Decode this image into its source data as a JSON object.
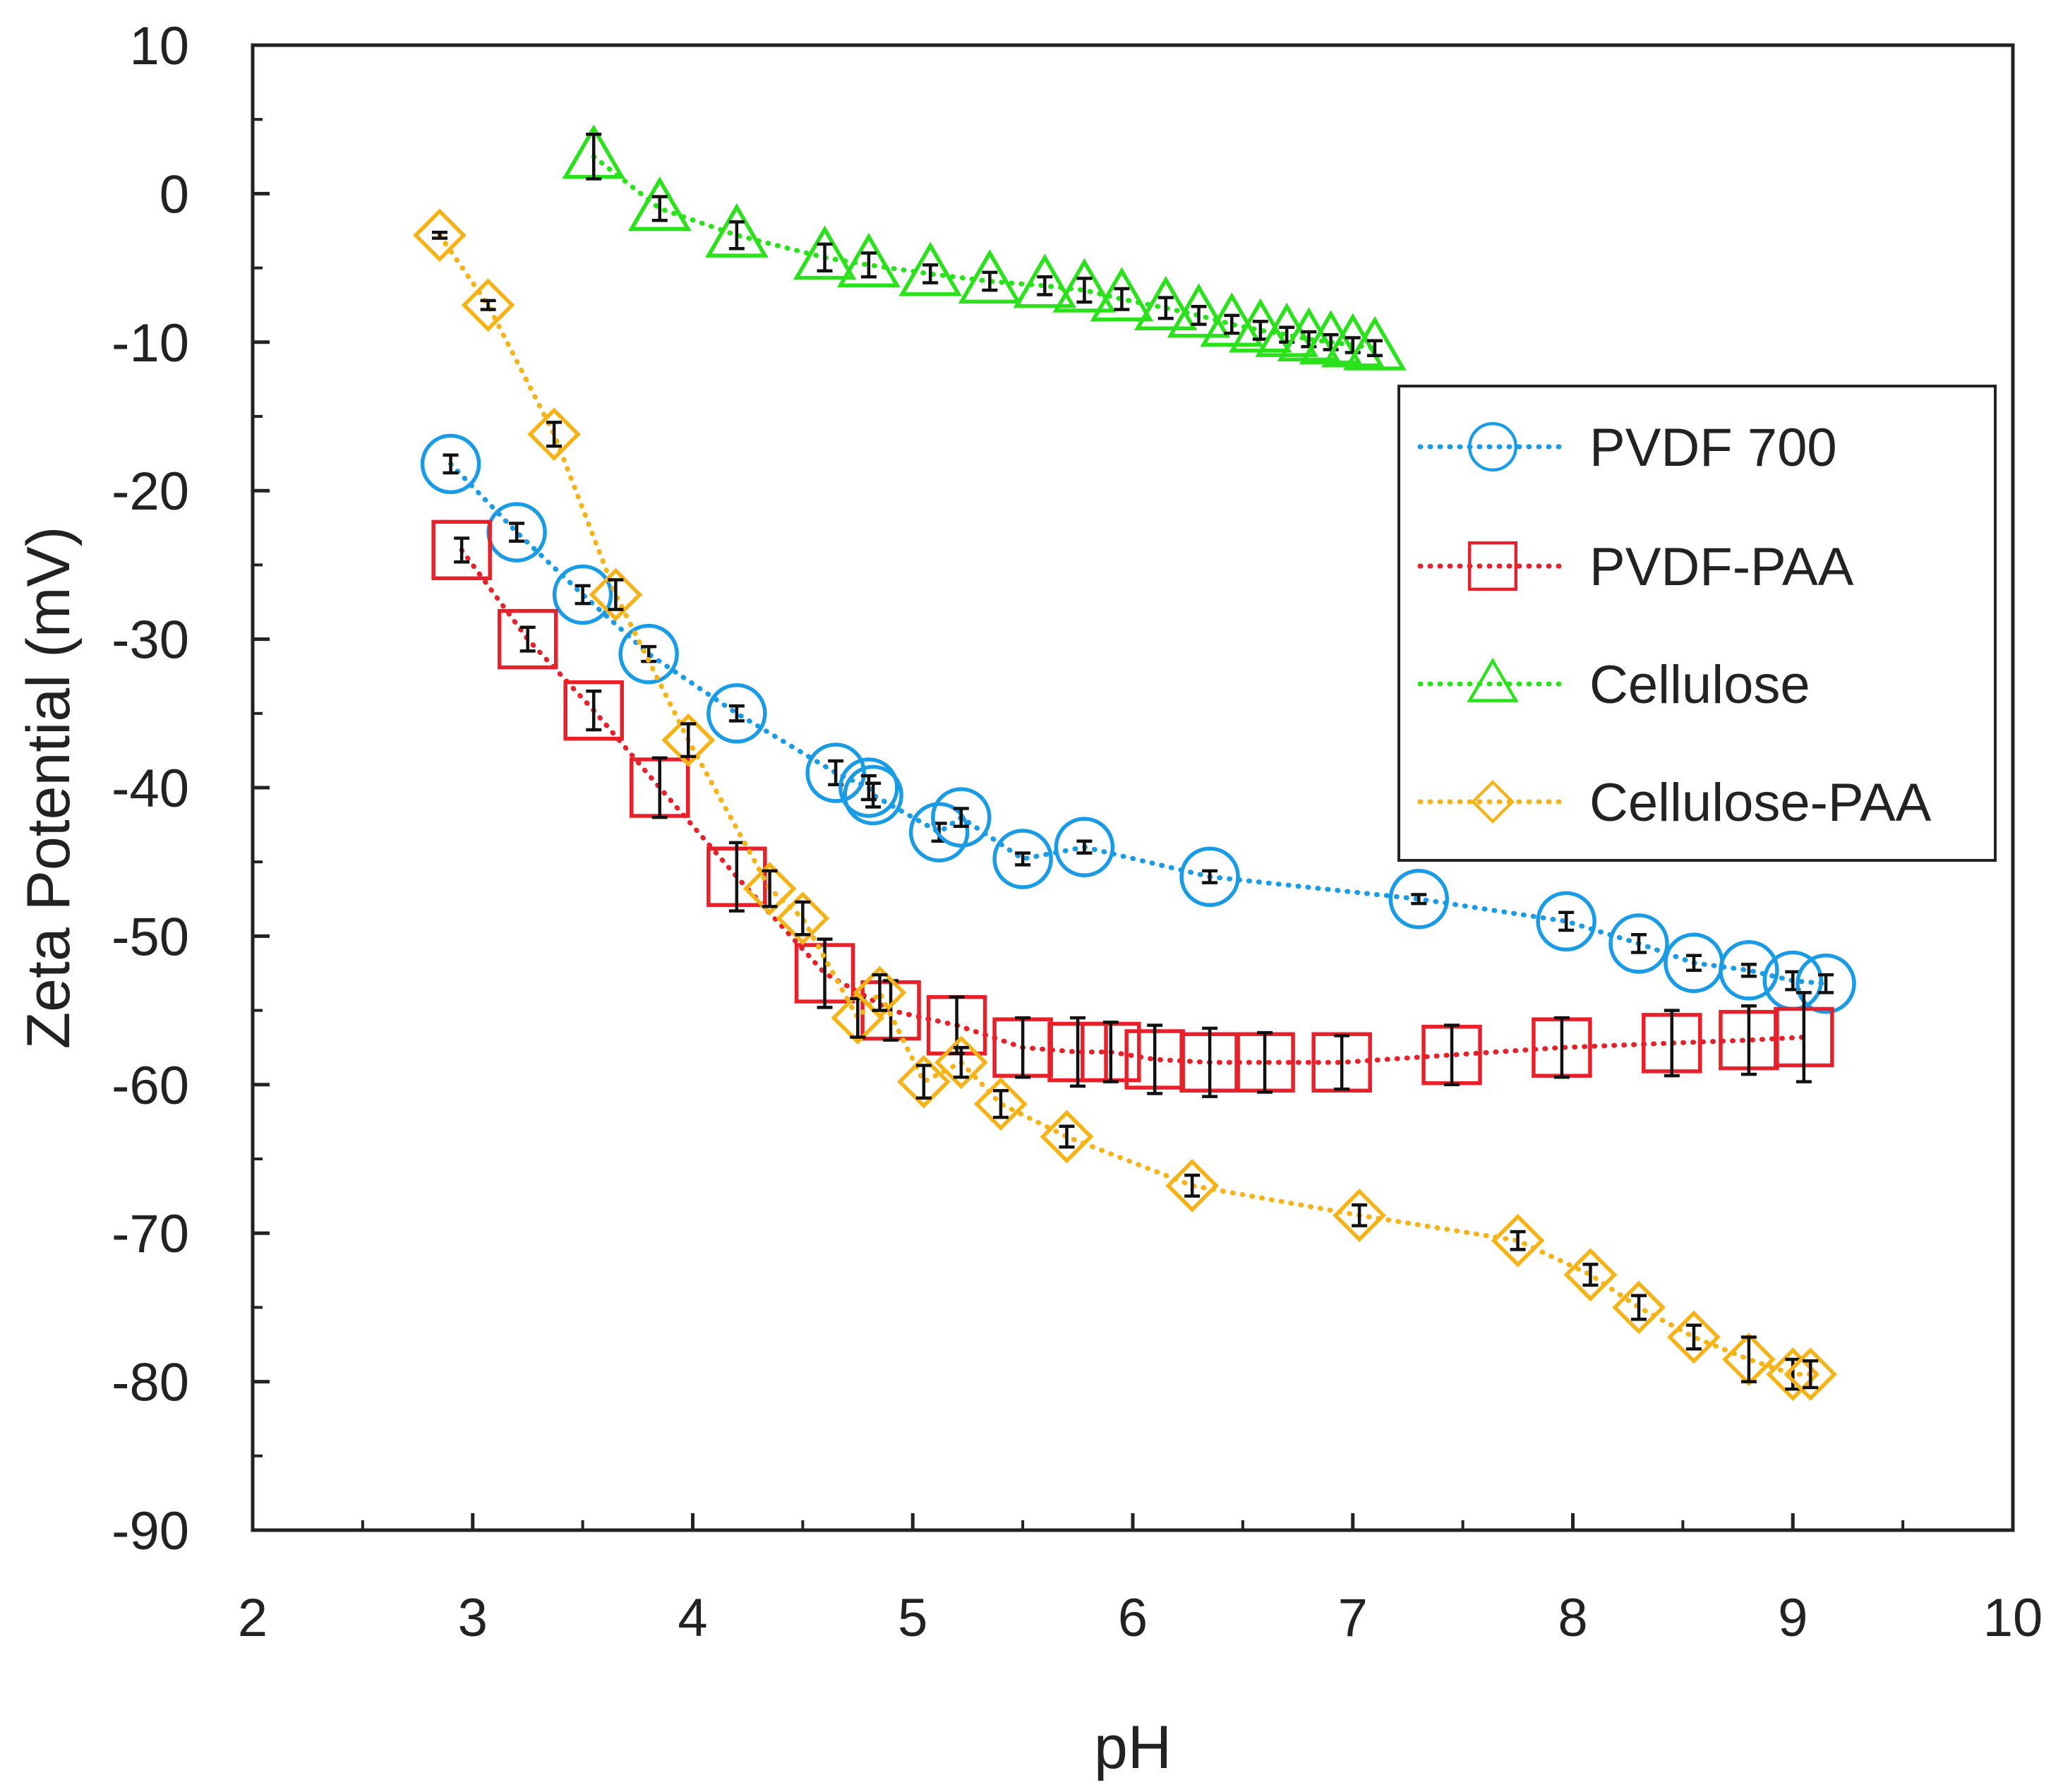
{
  "chart_data": {
    "type": "scatter",
    "title": "",
    "xlabel": "pH",
    "ylabel": "Zeta Potential (mV)",
    "xlim": [
      2,
      10
    ],
    "ylim": [
      -90,
      10
    ],
    "x_ticks": [
      "2",
      "3",
      "4",
      "5",
      "6",
      "7",
      "8",
      "9",
      "10"
    ],
    "y_ticks": [
      "10",
      "0",
      "-10",
      "-20",
      "-30",
      "-40",
      "-50",
      "-60",
      "-70",
      "-80",
      "-90"
    ],
    "legend_position": "top-right",
    "series": [
      {
        "name": "PVDF 700",
        "color": "#1a9be6",
        "marker": "circle",
        "x": [
          2.9,
          3.2,
          3.5,
          3.8,
          4.2,
          4.65,
          4.8,
          4.82,
          5.12,
          5.22,
          5.5,
          5.78,
          6.35,
          7.3,
          7.97,
          8.3,
          8.55,
          8.8,
          9.0,
          9.15
        ],
        "y": [
          -18.2,
          -22.8,
          -27.0,
          -31.0,
          -35.0,
          -39.0,
          -40.0,
          -40.5,
          -43.0,
          -42.0,
          -44.8,
          -44.0,
          -46.0,
          -47.5,
          -49.0,
          -50.5,
          -51.8,
          -52.3,
          -53.0,
          -53.2
        ],
        "err": [
          0.6,
          0.6,
          0.6,
          0.5,
          0.5,
          0.8,
          0.8,
          0.8,
          0.6,
          0.6,
          0.4,
          0.4,
          0.4,
          0.3,
          0.6,
          0.6,
          0.5,
          0.4,
          0.6,
          0.6
        ]
      },
      {
        "name": "PVDF-PAA",
        "color": "#e8202a",
        "marker": "square",
        "x": [
          2.95,
          3.25,
          3.55,
          3.85,
          4.2,
          4.6,
          4.9,
          5.2,
          5.5,
          5.75,
          5.9,
          6.1,
          6.35,
          6.6,
          6.95,
          7.45,
          7.95,
          8.45,
          8.8,
          9.05
        ],
        "y": [
          -24.0,
          -30.0,
          -34.8,
          -40.0,
          -46.0,
          -52.5,
          -55.0,
          -56.0,
          -57.5,
          -57.8,
          -57.8,
          -58.3,
          -58.5,
          -58.5,
          -58.5,
          -58.0,
          -57.5,
          -57.2,
          -57.0,
          -56.8
        ],
        "err": [
          0.8,
          0.8,
          1.3,
          2.0,
          2.3,
          2.3,
          2.0,
          1.9,
          2.0,
          2.3,
          2.0,
          2.3,
          2.3,
          2.0,
          1.8,
          2.0,
          2.0,
          2.2,
          2.3,
          3.0
        ]
      },
      {
        "name": "Cellulose",
        "color": "#29e21a",
        "marker": "triangle",
        "x": [
          3.55,
          3.85,
          4.2,
          4.6,
          4.8,
          5.08,
          5.35,
          5.6,
          5.78,
          5.95,
          6.15,
          6.3,
          6.45,
          6.58,
          6.7,
          6.8,
          6.9,
          7.0,
          7.1
        ],
        "y": [
          2.5,
          -1.0,
          -2.8,
          -4.3,
          -4.8,
          -5.4,
          -5.9,
          -6.2,
          -6.5,
          -7.1,
          -7.7,
          -8.2,
          -8.8,
          -9.2,
          -9.5,
          -9.8,
          -10.0,
          -10.2,
          -10.4
        ],
        "err": [
          1.5,
          0.8,
          0.9,
          0.9,
          0.8,
          0.6,
          0.6,
          0.6,
          0.8,
          0.7,
          0.7,
          0.6,
          0.6,
          0.6,
          0.5,
          0.5,
          0.5,
          0.5,
          0.5
        ]
      },
      {
        "name": "Cellulose-PAA",
        "color": "#f5b318",
        "marker": "diamond",
        "x": [
          2.85,
          3.07,
          3.37,
          3.65,
          3.98,
          4.35,
          4.5,
          4.75,
          4.85,
          5.05,
          5.22,
          5.4,
          5.7,
          6.27,
          7.03,
          7.75,
          8.08,
          8.3,
          8.55,
          8.8,
          9.0,
          9.08
        ],
        "y": [
          -2.8,
          -7.5,
          -16.2,
          -27.0,
          -36.8,
          -46.8,
          -48.8,
          -55.5,
          -53.8,
          -59.8,
          -58.5,
          -61.3,
          -63.5,
          -66.8,
          -68.8,
          -70.5,
          -72.8,
          -75.0,
          -77.0,
          -78.5,
          -79.5,
          -79.5
        ],
        "err": [
          0.2,
          0.3,
          0.8,
          1.0,
          1.1,
          1.2,
          1.1,
          1.3,
          1.2,
          1.1,
          1.0,
          0.9,
          0.7,
          0.7,
          0.7,
          0.6,
          0.7,
          0.8,
          0.8,
          1.5,
          1.0,
          0.9
        ]
      }
    ]
  }
}
